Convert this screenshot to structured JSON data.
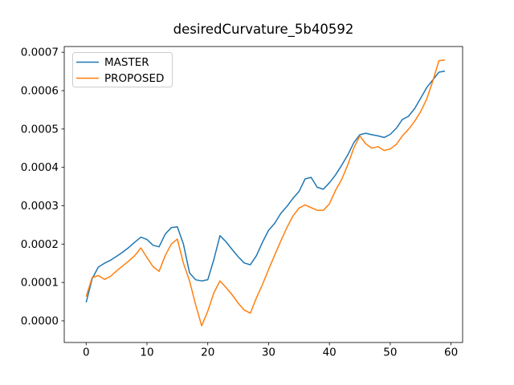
{
  "figure": {
    "background": "#ffffff"
  },
  "chart_data": {
    "type": "line",
    "title": "desiredCurvature_5b40592",
    "xlabel": "",
    "ylabel": "",
    "grid": false,
    "x_tick_labels": [
      "0",
      "10",
      "20",
      "30",
      "40",
      "50",
      "60"
    ],
    "x_tick_values": [
      0,
      10,
      20,
      30,
      40,
      50,
      60
    ],
    "y_tick_labels": [
      "0.0000",
      "0.0001",
      "0.0002",
      "0.0003",
      "0.0004",
      "0.0005",
      "0.0006",
      "0.0007"
    ],
    "y_tick_values": [
      0.0,
      0.0001,
      0.0002,
      0.0003,
      0.0004,
      0.0005,
      0.0006,
      0.0007
    ],
    "xlim": [
      -3.6,
      61.9
    ],
    "ylim": [
      -5.65e-05,
      0.000715
    ],
    "axis_color": "#000000",
    "text_color": "#000000",
    "legend": {
      "position": "upper-left",
      "frame_color": "#cccccc",
      "background": "#ffffff"
    },
    "x": [
      0,
      1,
      2,
      3,
      4,
      5,
      6,
      7,
      8,
      9,
      10,
      11,
      12,
      13,
      14,
      15,
      16,
      17,
      18,
      19,
      20,
      21,
      22,
      23,
      24,
      25,
      26,
      27,
      28,
      29,
      30,
      31,
      32,
      33,
      34,
      35,
      36,
      37,
      38,
      39,
      40,
      41,
      42,
      43,
      44,
      45,
      46,
      47,
      48,
      49,
      50,
      51,
      52,
      53,
      54,
      55,
      56,
      57,
      58,
      59
    ],
    "series": [
      {
        "name": "MASTER",
        "color": "#1f77b4",
        "values": [
          4.8e-05,
          0.00011,
          0.00014,
          0.00015,
          0.000158,
          0.000168,
          0.000179,
          0.000191,
          0.000205,
          0.000218,
          0.000212,
          0.000197,
          0.000193,
          0.000226,
          0.000243,
          0.000245,
          0.0002,
          0.000125,
          0.000107,
          0.000104,
          0.000107,
          0.00016,
          0.000222,
          0.000206,
          0.000186,
          0.000167,
          0.000151,
          0.000146,
          0.00017,
          0.000205,
          0.000236,
          0.000254,
          0.00028,
          0.000298,
          0.000319,
          0.000337,
          0.00037,
          0.000374,
          0.000348,
          0.000343,
          0.00036,
          0.00038,
          0.000405,
          0.000432,
          0.000464,
          0.000485,
          0.000489,
          0.000485,
          0.000482,
          0.000478,
          0.000486,
          0.000502,
          0.000525,
          0.000533,
          0.000553,
          0.00058,
          0.000608,
          0.000628,
          0.000648,
          0.000651
        ]
      },
      {
        "name": "PROPOSED",
        "color": "#ff7f0e",
        "values": [
          6.3e-05,
          0.000113,
          0.000118,
          0.000108,
          0.000116,
          0.00013,
          0.000143,
          0.000156,
          0.00017,
          0.00019,
          0.000165,
          0.000141,
          0.000129,
          0.00017,
          0.0002,
          0.000213,
          0.00015,
          0.000104,
          4.2e-05,
          -1.3e-05,
          2.5e-05,
          7.3e-05,
          0.000104,
          8.7e-05,
          6.8e-05,
          4.6e-05,
          2.8e-05,
          2e-05,
          6e-05,
          9.5e-05,
          0.000134,
          0.000171,
          0.000208,
          0.000243,
          0.000273,
          0.000294,
          0.000302,
          0.000295,
          0.000288,
          0.000288,
          0.000305,
          0.00034,
          0.000368,
          0.000406,
          0.00045,
          0.000482,
          0.000461,
          0.00045,
          0.000454,
          0.000444,
          0.000448,
          0.00046,
          0.000482,
          0.000499,
          0.00052,
          0.000545,
          0.000578,
          0.000625,
          0.000678,
          0.00068
        ]
      }
    ]
  }
}
